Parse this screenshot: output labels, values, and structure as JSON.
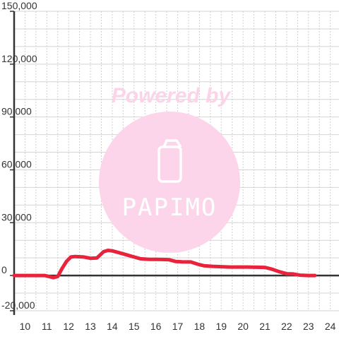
{
  "watermark": {
    "caption": "Powered by",
    "logo_text": "PAPIMO",
    "icon": "phone-icon",
    "caption_color": "#fbd4e8",
    "disc_color": "#fcd5ea"
  },
  "chart_data": {
    "type": "line",
    "title": "",
    "xlabel": "",
    "ylabel": "",
    "xlim": [
      9.5,
      24.4
    ],
    "ylim": [
      -20000,
      150000
    ],
    "x_ticks": [
      10,
      11,
      12,
      13,
      14,
      15,
      16,
      17,
      18,
      19,
      20,
      21,
      22,
      23,
      24
    ],
    "y_ticks": [
      -20000,
      0,
      30000,
      60000,
      90000,
      120000,
      150000
    ],
    "x_tick_labels": [
      "10",
      "11",
      "12",
      "13",
      "14",
      "15",
      "16",
      "17",
      "18",
      "19",
      "20",
      "21",
      "22",
      "23",
      "24"
    ],
    "y_tick_labels": [
      "-20,000",
      "0",
      "30,000",
      "60,000",
      "90,000",
      "120,000",
      "150,000"
    ],
    "grid": true,
    "series_color": "#e8233c",
    "series": [
      {
        "points": [
          [
            9.5,
            0
          ],
          [
            10.0,
            0
          ],
          [
            10.5,
            0
          ],
          [
            10.9,
            0
          ],
          [
            11.3,
            -1200
          ],
          [
            11.5,
            -600
          ],
          [
            11.7,
            4000
          ],
          [
            11.9,
            8000
          ],
          [
            12.1,
            10500
          ],
          [
            12.3,
            10800
          ],
          [
            12.7,
            10500
          ],
          [
            13.0,
            9800
          ],
          [
            13.3,
            10000
          ],
          [
            13.6,
            13500
          ],
          [
            13.8,
            14300
          ],
          [
            14.0,
            14000
          ],
          [
            14.3,
            13000
          ],
          [
            14.7,
            11600
          ],
          [
            15.0,
            10500
          ],
          [
            15.3,
            9500
          ],
          [
            15.7,
            9200
          ],
          [
            16.0,
            9200
          ],
          [
            16.3,
            9100
          ],
          [
            16.6,
            9000
          ],
          [
            16.9,
            8000
          ],
          [
            17.2,
            7800
          ],
          [
            17.6,
            7700
          ],
          [
            17.9,
            6500
          ],
          [
            18.2,
            5600
          ],
          [
            18.6,
            5200
          ],
          [
            19.0,
            5000
          ],
          [
            19.4,
            4800
          ],
          [
            19.8,
            4800
          ],
          [
            20.2,
            4800
          ],
          [
            20.6,
            4700
          ],
          [
            21.0,
            4600
          ],
          [
            21.3,
            3700
          ],
          [
            21.7,
            2000
          ],
          [
            22.0,
            1000
          ],
          [
            22.3,
            900
          ],
          [
            22.6,
            200
          ],
          [
            23.0,
            0
          ],
          [
            23.3,
            0
          ]
        ]
      }
    ]
  }
}
